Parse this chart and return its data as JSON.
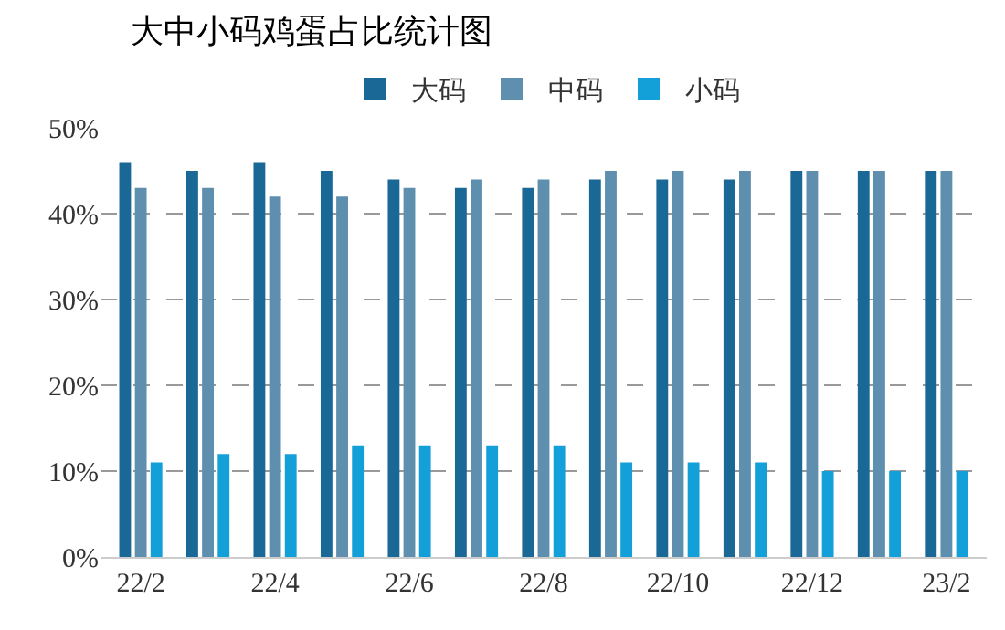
{
  "chart_data": {
    "type": "bar",
    "title": "大中小码鸡蛋占比统计图",
    "categories": [
      "22/2",
      null,
      "22/4",
      null,
      "22/6",
      null,
      "22/8",
      null,
      "22/10",
      null,
      "22/12",
      null,
      "23/2"
    ],
    "series": [
      {
        "name": "大码",
        "color": "#1a6896",
        "values": [
          46,
          45,
          46,
          45,
          44,
          43,
          43,
          44,
          44,
          44,
          45,
          45,
          45
        ]
      },
      {
        "name": "中码",
        "color": "#5f8fae",
        "values": [
          43,
          43,
          42,
          42,
          43,
          44,
          44,
          45,
          45,
          45,
          45,
          45,
          45
        ]
      },
      {
        "name": "小码",
        "color": "#13a0d8",
        "values": [
          11,
          12,
          12,
          13,
          13,
          13,
          13,
          11,
          11,
          11,
          10,
          10,
          10
        ]
      }
    ],
    "ylim": [
      0,
      50
    ],
    "yticks": [
      {
        "value": 0,
        "label": "0%"
      },
      {
        "value": 10,
        "label": "10%"
      },
      {
        "value": 20,
        "label": "20%"
      },
      {
        "value": 30,
        "label": "30%"
      },
      {
        "value": 40,
        "label": "40%"
      },
      {
        "value": 50,
        "label": "50%"
      }
    ],
    "grid": "y",
    "legend": "top"
  }
}
